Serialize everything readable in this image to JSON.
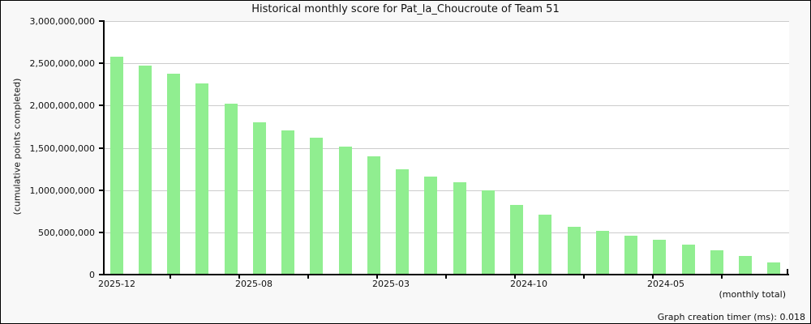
{
  "title": "Historical monthly score for Pat_la_Choucroute of Team 51",
  "footer": {
    "timer_text": "Graph creation timer (ms): 0.018"
  },
  "colors": {
    "bar": "#90ee90",
    "grid": "#cccccc",
    "axis": "#000000",
    "plot_background": "#ffffff",
    "outer_background": "#f8f8f8",
    "text": "#111111"
  },
  "chart_data": {
    "type": "bar",
    "title": "Historical monthly score for Pat_la_Choucroute of Team 51",
    "ylabel": "(cumulative points completed)",
    "x_axis_note": "(monthly total)",
    "grid": true,
    "legend_position": "none",
    "ylim": [
      0,
      3000000000
    ],
    "y_tick_values": [
      3000000000,
      2500000000,
      2000000000,
      1500000000,
      1000000000,
      500000000,
      0
    ],
    "y_tick_labels": [
      "3,000,000,000",
      "2,500,000,000",
      "2,000,000,000",
      "1,500,000,000",
      "1,000,000,000",
      "500,000,000",
      "0"
    ],
    "x_tick_labels": [
      "2025-12",
      "2025-08",
      "2025-03",
      "2024-10",
      "2024-05"
    ],
    "categories": [
      "2025-12",
      "2025-11",
      "2025-10",
      "2025-09",
      "2025-08",
      "2025-07",
      "2025-06",
      "2025-05",
      "2025-04",
      "2025-03",
      "2025-02",
      "2025-01",
      "2024-12",
      "2024-11",
      "2024-10",
      "2024-09",
      "2024-08",
      "2024-07",
      "2024-06",
      "2024-05",
      "2024-04",
      "2024-03",
      "2024-02",
      "2024-01"
    ],
    "values": [
      2580000000,
      2470000000,
      2380000000,
      2260000000,
      2020000000,
      1805000000,
      1710000000,
      1620000000,
      1510000000,
      1395000000,
      1250000000,
      1155000000,
      1095000000,
      995000000,
      825000000,
      705000000,
      565000000,
      515000000,
      460000000,
      410000000,
      355000000,
      285000000,
      220000000,
      140000000
    ]
  }
}
